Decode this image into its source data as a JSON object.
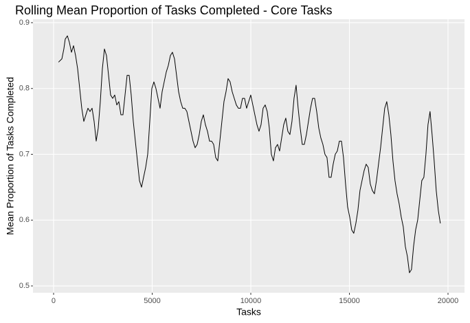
{
  "chart_data": {
    "type": "line",
    "title": "Rolling Mean Proportion of Tasks Completed - Core Tasks",
    "x_label": "Tasks",
    "y_label": "Mean Proportion of Tasks Completed",
    "color": "#000000",
    "grid": true,
    "xlim": [
      -1045,
      20836
    ],
    "ylim": [
      0.4896,
      0.9052
    ],
    "xticks": [
      0,
      5000,
      10000,
      15000,
      20000
    ],
    "yticks": [
      0.5,
      0.6,
      0.7,
      0.8,
      0.9
    ],
    "x": [
      250,
      420,
      520,
      590,
      700,
      801,
      906,
      1010,
      1115,
      1219,
      1324,
      1428,
      1533,
      1637,
      1742,
      1846,
      1951,
      2055,
      2160,
      2264,
      2369,
      2473,
      2578,
      2682,
      2787,
      2891,
      2996,
      3100,
      3205,
      3309,
      3414,
      3518,
      3623,
      3727,
      3832,
      3936,
      4041,
      4145,
      4250,
      4354,
      4459,
      4563,
      4668,
      4772,
      4877,
      4981,
      5086,
      5190,
      5295,
      5399,
      5504,
      5608,
      5713,
      5817,
      5922,
      6026,
      6131,
      6235,
      6340,
      6444,
      6549,
      6653,
      6758,
      6862,
      6967,
      7071,
      7176,
      7280,
      7385,
      7489,
      7594,
      7698,
      7803,
      7907,
      8012,
      8116,
      8221,
      8325,
      8430,
      8534,
      8639,
      8743,
      8848,
      8952,
      9057,
      9161,
      9266,
      9370,
      9475,
      9579,
      9684,
      9788,
      9893,
      9997,
      10102,
      10206,
      10311,
      10415,
      10520,
      10624,
      10729,
      10833,
      10938,
      11042,
      11147,
      11251,
      11356,
      11460,
      11565,
      11669,
      11774,
      11878,
      11983,
      12087,
      12192,
      12296,
      12401,
      12505,
      12610,
      12714,
      12819,
      12923,
      13028,
      13132,
      13237,
      13341,
      13446,
      13550,
      13655,
      13759,
      13864,
      13968,
      14073,
      14177,
      14282,
      14386,
      14491,
      14595,
      14700,
      14804,
      14909,
      15013,
      15118,
      15222,
      15327,
      15431,
      15536,
      15640,
      15745,
      15849,
      15954,
      16058,
      16163,
      16267,
      16372,
      16476,
      16581,
      16685,
      16790,
      16894,
      16999,
      17103,
      17208,
      17312,
      17417,
      17521,
      17626,
      17730,
      17835,
      17939,
      18044,
      18148,
      18253,
      18357,
      18462,
      18566,
      18671,
      18775,
      18880,
      18984,
      19089,
      19193,
      19298,
      19402,
      19507,
      19611
    ],
    "values": [
      0.84,
      0.845,
      0.86,
      0.875,
      0.88,
      0.87,
      0.855,
      0.865,
      0.85,
      0.83,
      0.8,
      0.77,
      0.75,
      0.76,
      0.77,
      0.765,
      0.77,
      0.75,
      0.72,
      0.74,
      0.78,
      0.83,
      0.86,
      0.85,
      0.82,
      0.79,
      0.785,
      0.79,
      0.775,
      0.78,
      0.76,
      0.76,
      0.79,
      0.82,
      0.82,
      0.79,
      0.75,
      0.72,
      0.69,
      0.66,
      0.65,
      0.665,
      0.68,
      0.7,
      0.75,
      0.8,
      0.81,
      0.8,
      0.785,
      0.77,
      0.795,
      0.81,
      0.825,
      0.835,
      0.85,
      0.855,
      0.845,
      0.82,
      0.795,
      0.78,
      0.77,
      0.77,
      0.765,
      0.75,
      0.735,
      0.72,
      0.71,
      0.715,
      0.73,
      0.75,
      0.76,
      0.745,
      0.735,
      0.72,
      0.72,
      0.715,
      0.695,
      0.69,
      0.72,
      0.75,
      0.78,
      0.795,
      0.815,
      0.81,
      0.795,
      0.785,
      0.775,
      0.77,
      0.77,
      0.785,
      0.785,
      0.77,
      0.78,
      0.79,
      0.775,
      0.76,
      0.745,
      0.735,
      0.745,
      0.77,
      0.775,
      0.765,
      0.74,
      0.7,
      0.69,
      0.71,
      0.715,
      0.705,
      0.725,
      0.745,
      0.755,
      0.735,
      0.73,
      0.75,
      0.785,
      0.805,
      0.77,
      0.74,
      0.715,
      0.715,
      0.73,
      0.75,
      0.77,
      0.785,
      0.785,
      0.765,
      0.74,
      0.725,
      0.715,
      0.7,
      0.695,
      0.665,
      0.665,
      0.685,
      0.7,
      0.705,
      0.72,
      0.72,
      0.695,
      0.655,
      0.62,
      0.605,
      0.585,
      0.58,
      0.595,
      0.615,
      0.645,
      0.66,
      0.675,
      0.685,
      0.68,
      0.655,
      0.645,
      0.64,
      0.66,
      0.685,
      0.71,
      0.74,
      0.77,
      0.78,
      0.76,
      0.73,
      0.69,
      0.66,
      0.64,
      0.625,
      0.605,
      0.59,
      0.56,
      0.545,
      0.52,
      0.525,
      0.56,
      0.585,
      0.6,
      0.63,
      0.66,
      0.665,
      0.7,
      0.745,
      0.765,
      0.73,
      0.69,
      0.645,
      0.615,
      0.595
    ]
  }
}
